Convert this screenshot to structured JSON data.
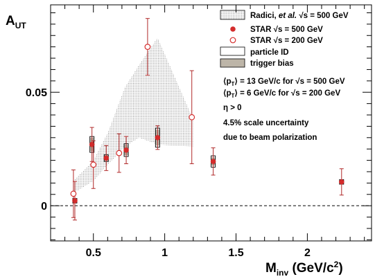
{
  "chart_data": {
    "type": "scatter",
    "xlabel": "M",
    "xlabel_sub": "inv",
    "xlabel_unit": " (GeV/c",
    "xlabel_unit_sup": "2",
    "xlabel_unit_close": ")",
    "ylabel": "A",
    "ylabel_sub": "UT",
    "xlim": [
      0.2,
      2.45
    ],
    "ylim": [
      -0.0155,
      0.0885
    ],
    "xticks": [
      0.5,
      1,
      1.5,
      2
    ],
    "xtick_labels": [
      "0.5",
      "1",
      "1.5",
      "2"
    ],
    "yticks": [
      0,
      0.05
    ],
    "ytick_labels": [
      "0",
      "0.05"
    ],
    "zero_line": true,
    "theory_band": {
      "name": "Radici, et al. √s = 500 GeV",
      "upper": [
        [
          0.36,
          0.011
        ],
        [
          0.5,
          0.02
        ],
        [
          0.6,
          0.032
        ],
        [
          0.72,
          0.052
        ],
        [
          0.82,
          0.062
        ],
        [
          0.95,
          0.074
        ],
        [
          1.2,
          0.038
        ]
      ],
      "lower": [
        [
          0.36,
          0.0055
        ],
        [
          0.5,
          0.011
        ],
        [
          0.6,
          0.018
        ],
        [
          0.72,
          0.026
        ],
        [
          0.82,
          0.03
        ],
        [
          0.95,
          0.027
        ],
        [
          1.2,
          0.026
        ]
      ]
    },
    "series": [
      {
        "name": "STAR √s = 500 GeV",
        "marker": "filled",
        "points": [
          {
            "x": 0.37,
            "y": 0.0022,
            "err": 0.0085,
            "sys_pid": 0.001,
            "sys_trig": 0.001
          },
          {
            "x": 0.49,
            "y": 0.027,
            "err": 0.0075,
            "sys_pid": 0.0035,
            "sys_trig": 0.003
          },
          {
            "x": 0.59,
            "y": 0.021,
            "err": 0.0055,
            "sys_pid": 0.0015,
            "sys_trig": 0.0012
          },
          {
            "x": 0.73,
            "y": 0.0245,
            "err": 0.006,
            "sys_pid": 0.0028,
            "sys_trig": 0.0022
          },
          {
            "x": 0.95,
            "y": 0.03,
            "err": 0.0052,
            "sys_pid": 0.0042,
            "sys_trig": 0.0035
          },
          {
            "x": 1.34,
            "y": 0.0195,
            "err": 0.006,
            "sys_pid": 0.0025,
            "sys_trig": 0.0018
          },
          {
            "x": 2.24,
            "y": 0.0105,
            "err": 0.0058,
            "sys_pid": 0.001,
            "sys_trig": 0.0008
          }
        ]
      },
      {
        "name": "STAR √s = 200 GeV",
        "marker": "open",
        "points": [
          {
            "x": 0.36,
            "y": 0.0053,
            "err": 0.0105
          },
          {
            "x": 0.5,
            "y": 0.0181,
            "err": 0.0105
          },
          {
            "x": 0.68,
            "y": 0.0232,
            "err": 0.0085
          },
          {
            "x": 0.88,
            "y": 0.07,
            "err": 0.0125
          },
          {
            "x": 1.19,
            "y": 0.039,
            "err": 0.0205
          }
        ]
      }
    ],
    "legend": {
      "placement": "top-right",
      "entries": [
        {
          "key": "band",
          "label_main": "Radici, ",
          "label_ital": "et al.",
          "label_rest": " √s = 500 GeV"
        },
        {
          "key": "filled",
          "label": "STAR  √s = 500 GeV"
        },
        {
          "key": "open",
          "label": "STAR  √s = 200 GeV"
        },
        {
          "key": "pid",
          "label": "particle ID"
        },
        {
          "key": "trig",
          "label": "trigger bias"
        }
      ]
    },
    "annotations": {
      "pt500_a": "⟨p",
      "pt500_sub": "T",
      "pt500_b": "⟩ = 13 GeV/c for  √s = 500 GeV",
      "pt200_a": "⟨p",
      "pt200_sub": "T",
      "pt200_b": "⟩ =  6 GeV/c for  √s = 200 GeV",
      "eta": "η > 0",
      "scale1": "4.5% scale uncertainty",
      "scale2": "due to beam polarization"
    },
    "colors": {
      "marker": "#d42c2c",
      "errorbar": "#b02828",
      "band_dots": "#7a7a7a",
      "trigger_box": "#bdb5a8",
      "axis": "#000000"
    }
  }
}
